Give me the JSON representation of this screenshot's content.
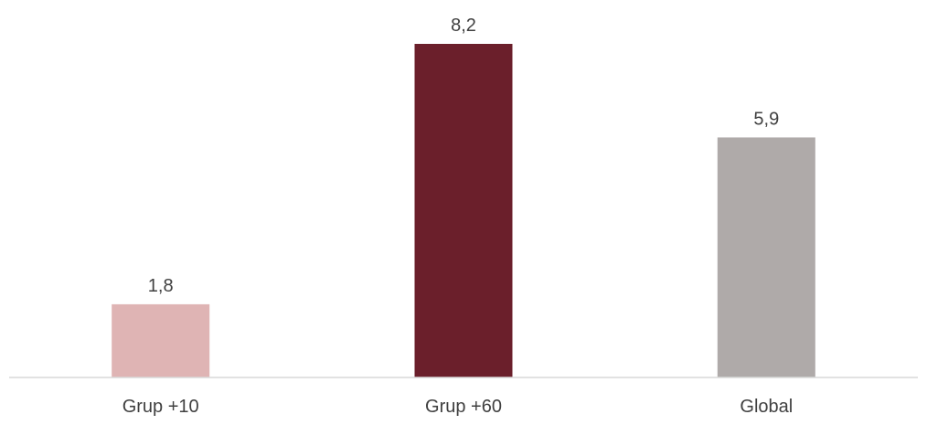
{
  "chart_data": {
    "type": "bar",
    "title": "",
    "xlabel": "",
    "ylabel": "",
    "categories": [
      "Grup +10",
      "Grup +60",
      "Global"
    ],
    "values": [
      1.8,
      8.2,
      5.9
    ],
    "value_labels": [
      "1,8",
      "8,2",
      "5,9"
    ],
    "colors": [
      "#dfb4b4",
      "#6b1f2b",
      "#afaaa9"
    ],
    "axis_color": "#d9d9d9",
    "ylim": [
      0,
      8.2
    ],
    "grid": false,
    "legend": "none"
  }
}
